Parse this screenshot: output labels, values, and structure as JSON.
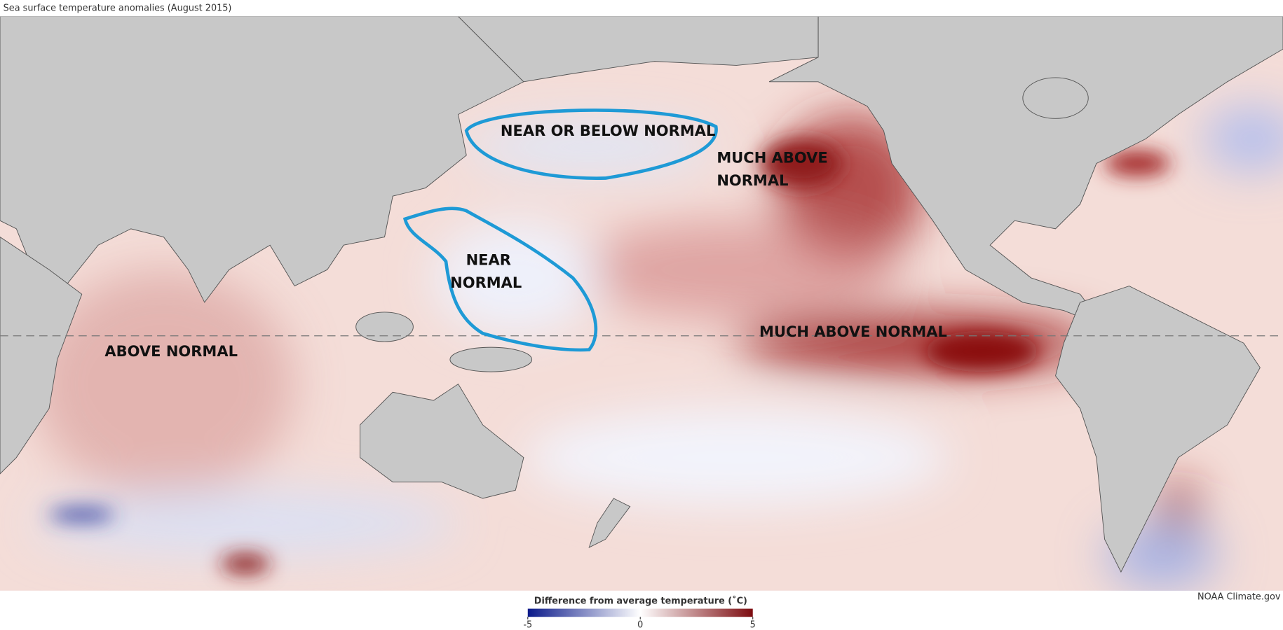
{
  "title": "Sea surface temperature anomalies (August 2015)",
  "annotations": [
    {
      "lines": [
        "NEAR OR BELOW NORMAL"
      ]
    },
    {
      "lines": [
        "MUCH ABOVE",
        "NORMAL"
      ]
    },
    {
      "lines": [
        "NEAR",
        "NORMAL"
      ]
    },
    {
      "lines": [
        "MUCH ABOVE NORMAL"
      ]
    },
    {
      "lines": [
        "ABOVE NORMAL"
      ]
    }
  ],
  "legend": {
    "title": "Difference from average temperature (˚C)",
    "range": [
      -5,
      5
    ],
    "ticks": [
      -5,
      0,
      5
    ],
    "colors": [
      "#0b1a8a",
      "#ffffff",
      "#7d0c10"
    ]
  },
  "credit": "NOAA Climate.gov"
}
